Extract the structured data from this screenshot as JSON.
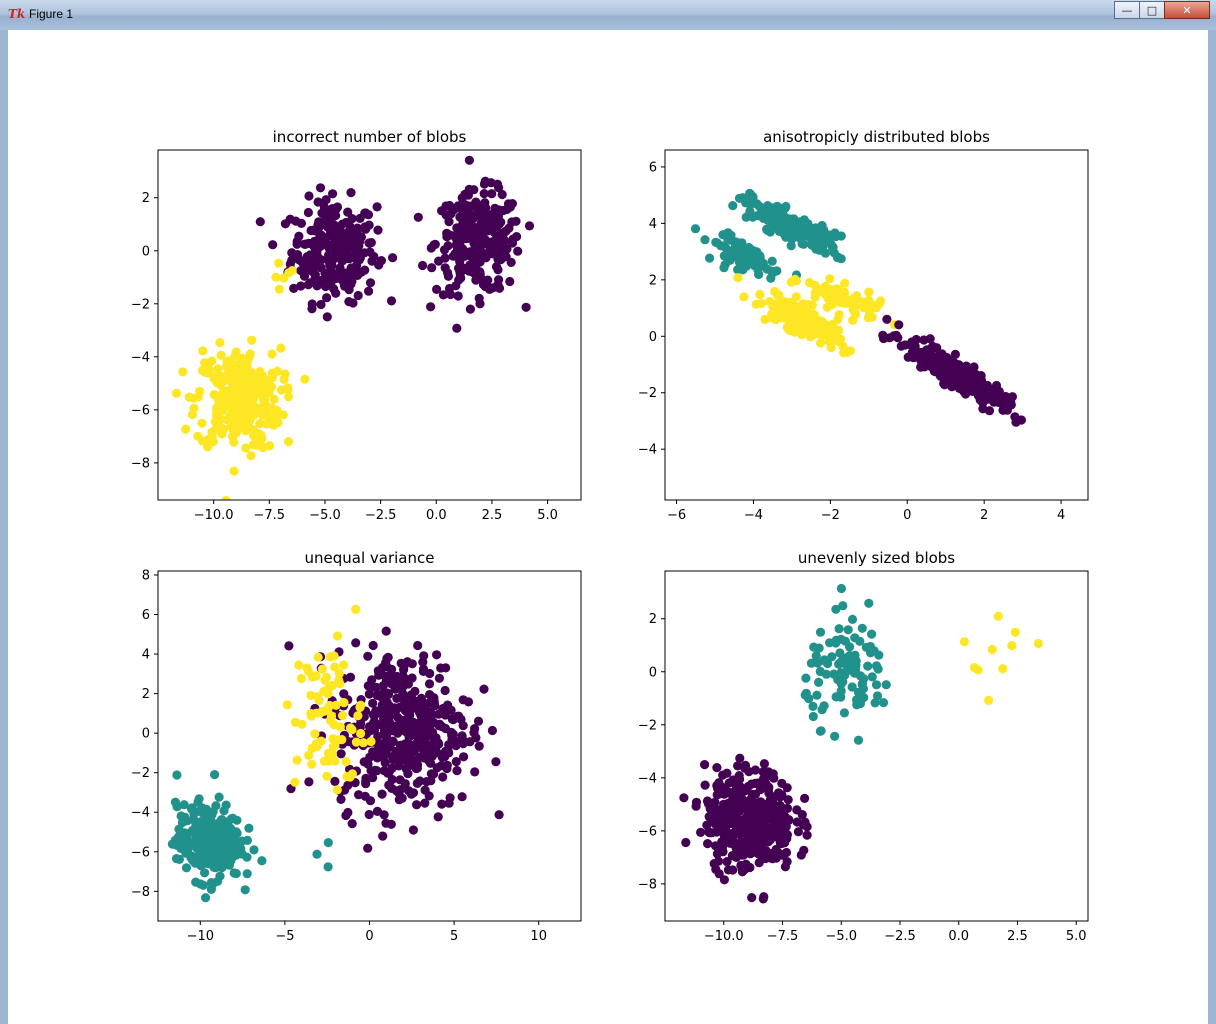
{
  "window": {
    "title": "Figure 1",
    "app_icon": "tk-feather-icon",
    "buttons": [
      "minimize",
      "maximize",
      "close"
    ]
  },
  "colors": {
    "purple": "#440154",
    "teal": "#21918c",
    "yellow": "#fde725"
  },
  "chart_data": [
    {
      "type": "scatter",
      "title": "incorrect number of blobs",
      "xlim": [
        -12.5,
        6.5
      ],
      "ylim": [
        -9.4,
        3.8
      ],
      "xticks": [
        -10.0,
        -7.5,
        -5.0,
        -2.5,
        0.0,
        2.5,
        5.0
      ],
      "xtick_labels": [
        "−10.0",
        "−7.5",
        "−5.0",
        "−2.5",
        "0.0",
        "2.5",
        "5.0"
      ],
      "yticks": [
        -8,
        -6,
        -4,
        -2,
        0,
        2
      ],
      "ytick_labels": [
        "−8",
        "−6",
        "−4",
        "−2",
        "0",
        "2"
      ],
      "series": [
        {
          "color": "purple",
          "clusters": [
            {
              "cx": -4.6,
              "cy": 0.0,
              "sx": 0.95,
              "sy": 0.95,
              "n": 260,
              "angle": 0
            },
            {
              "cx": 1.9,
              "cy": 0.3,
              "sx": 0.95,
              "sy": 0.95,
              "n": 260,
              "angle": 0
            }
          ]
        },
        {
          "color": "yellow",
          "clusters": [
            {
              "cx": -8.9,
              "cy": -5.6,
              "sx": 0.95,
              "sy": 0.95,
              "n": 280,
              "angle": 0
            },
            {
              "cx": -7.0,
              "cy": -1.0,
              "sx": 0.4,
              "sy": 0.3,
              "n": 6,
              "angle": 0
            }
          ]
        }
      ]
    },
    {
      "type": "scatter",
      "title": "anisotropicly distributed blobs",
      "xlim": [
        -6.3,
        4.7
      ],
      "ylim": [
        -5.8,
        6.6
      ],
      "xticks": [
        -6,
        -4,
        -2,
        0,
        2,
        4
      ],
      "xtick_labels": [
        "−6",
        "−4",
        "−2",
        "0",
        "2",
        "4"
      ],
      "yticks": [
        -4,
        -2,
        0,
        2,
        4,
        6
      ],
      "ytick_labels": [
        "−4",
        "−2",
        "0",
        "2",
        "4",
        "6"
      ],
      "series": [
        {
          "color": "teal",
          "clusters": [
            {
              "cx": -3.0,
              "cy": 3.9,
              "sx": 0.75,
              "sy": 0.22,
              "n": 170,
              "angle": -35
            },
            {
              "cx": -4.2,
              "cy": 2.8,
              "sx": 0.55,
              "sy": 0.2,
              "n": 90,
              "angle": -35
            }
          ]
        },
        {
          "color": "yellow",
          "clusters": [
            {
              "cx": -2.7,
              "cy": 0.6,
              "sx": 0.6,
              "sy": 0.22,
              "n": 180,
              "angle": -40
            },
            {
              "cx": -1.7,
              "cy": 1.3,
              "sx": 0.55,
              "sy": 0.2,
              "n": 80,
              "angle": -30
            }
          ]
        },
        {
          "color": "purple",
          "clusters": [
            {
              "cx": 1.2,
              "cy": -1.3,
              "sx": 0.85,
              "sy": 0.2,
              "n": 260,
              "angle": -42
            }
          ]
        }
      ]
    },
    {
      "type": "scatter",
      "title": "unequal variance",
      "xlim": [
        -12.5,
        12.5
      ],
      "ylim": [
        -9.5,
        8.2
      ],
      "xticks": [
        -10,
        -5,
        0,
        5,
        10
      ],
      "xtick_labels": [
        "−10",
        "−5",
        "0",
        "5",
        "10"
      ],
      "yticks": [
        -8,
        -6,
        -4,
        -2,
        0,
        2,
        4,
        6,
        8
      ],
      "ytick_labels": [
        "−8",
        "−6",
        "−4",
        "−2",
        "0",
        "2",
        "4",
        "6",
        "8"
      ],
      "series": [
        {
          "color": "purple",
          "clusters": [
            {
              "cx": 2.0,
              "cy": 0.2,
              "sx": 2.0,
              "sy": 2.0,
              "n": 420,
              "angle": 0
            }
          ]
        },
        {
          "color": "yellow",
          "clusters": [
            {
              "cx": -2.4,
              "cy": 0.8,
              "sx": 1.0,
              "sy": 2.0,
              "n": 80,
              "angle": 0
            }
          ]
        },
        {
          "color": "teal",
          "clusters": [
            {
              "cx": -9.5,
              "cy": -5.5,
              "sx": 0.95,
              "sy": 0.95,
              "n": 280,
              "angle": 0
            },
            {
              "cx": -2.5,
              "cy": -6.3,
              "sx": 0.4,
              "sy": 0.6,
              "n": 3,
              "angle": 0
            }
          ]
        }
      ]
    },
    {
      "type": "scatter",
      "title": "unevenly sized blobs",
      "xlim": [
        -12.5,
        5.5
      ],
      "ylim": [
        -9.4,
        3.8
      ],
      "xticks": [
        -10.0,
        -7.5,
        -5.0,
        -2.5,
        0.0,
        2.5,
        5.0
      ],
      "xtick_labels": [
        "−10.0",
        "−7.5",
        "−5.0",
        "−2.5",
        "0.0",
        "2.5",
        "5.0"
      ],
      "yticks": [
        -8,
        -6,
        -4,
        -2,
        0,
        2
      ],
      "ytick_labels": [
        "−8",
        "−6",
        "−4",
        "−2",
        "0",
        "2"
      ],
      "series": [
        {
          "color": "purple",
          "clusters": [
            {
              "cx": -8.9,
              "cy": -5.6,
              "sx": 0.95,
              "sy": 0.95,
              "n": 400,
              "angle": 0
            }
          ]
        },
        {
          "color": "teal",
          "clusters": [
            {
              "cx": -4.6,
              "cy": 0.0,
              "sx": 0.95,
              "sy": 0.95,
              "n": 100,
              "angle": 0
            }
          ]
        },
        {
          "color": "yellow",
          "clusters": [
            {
              "cx": 2.0,
              "cy": 0.3,
              "sx": 1.0,
              "sy": 1.0,
              "n": 10,
              "angle": 0
            }
          ]
        }
      ]
    }
  ]
}
